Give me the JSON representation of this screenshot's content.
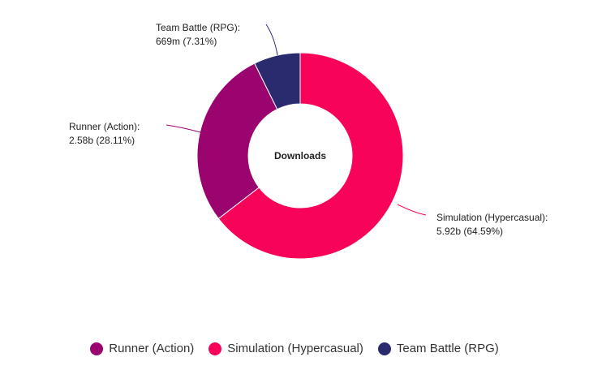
{
  "chart_data": {
    "type": "pie",
    "donut": true,
    "center_label": "Downloads",
    "slices": [
      {
        "name": "Simulation (Hypercasual)",
        "value_label": "5.92b (64.59%)",
        "value": 5.92,
        "percent": 64.59,
        "color": "#f7035a"
      },
      {
        "name": "Runner (Action)",
        "value_label": "2.58b (28.11%)",
        "value": 2.58,
        "percent": 28.11,
        "color": "#9b046f"
      },
      {
        "name": "Team Battle (RPG)",
        "value_label": "669m (7.31%)",
        "value": 0.669,
        "percent": 7.31,
        "color": "#2a2a6e"
      }
    ],
    "legend": {
      "position": "bottom",
      "items": [
        "Runner (Action)",
        "Simulation (Hypercasual)",
        "Team Battle (RPG)"
      ]
    }
  }
}
